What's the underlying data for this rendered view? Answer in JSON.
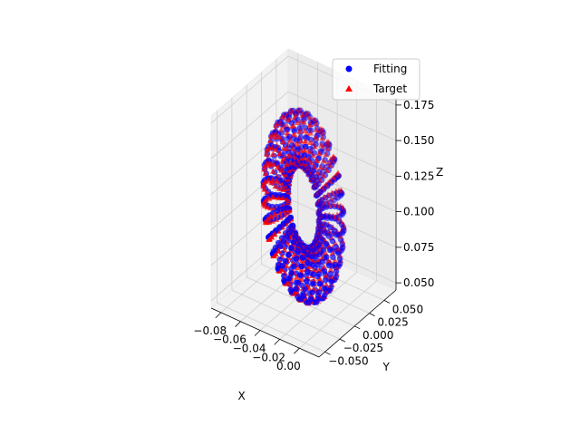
{
  "chart_data": {
    "type": "scatter3d",
    "title": "",
    "xlabel": "X",
    "ylabel": "Y",
    "zlabel": "Z",
    "xlim": [
      -0.09,
      0.02
    ],
    "ylim": [
      -0.06,
      0.07
    ],
    "zlim": [
      0.045,
      0.18
    ],
    "x_ticks": [
      -0.08,
      -0.06,
      -0.04,
      -0.02,
      0.0
    ],
    "x_tick_labels": [
      "−0.08",
      "−0.06",
      "−0.04",
      "−0.02",
      "0.00"
    ],
    "y_ticks": [
      -0.05,
      -0.025,
      0.0,
      0.025,
      0.05
    ],
    "y_tick_labels": [
      "−0.050",
      "−0.025",
      "0.000",
      "0.025",
      "0.050"
    ],
    "z_ticks": [
      0.05,
      0.075,
      0.1,
      0.125,
      0.15,
      0.175
    ],
    "z_tick_labels": [
      "0.050",
      "0.075",
      "0.100",
      "0.125",
      "0.150",
      "0.175"
    ],
    "grid": true,
    "legend_position": "upper-right",
    "shape": {
      "kind": "torus-like surface sampled on a grid",
      "center": [
        -0.035,
        0.005,
        0.11
      ],
      "major_radius": 0.03,
      "minor_radius": 0.012,
      "tilt_degrees": 60
    },
    "series": [
      {
        "name": "Fitting",
        "marker": "circle",
        "color": "#0000ff",
        "phase": 0.0
      },
      {
        "name": "Target",
        "marker": "triangle",
        "color": "#ff0000",
        "phase": 0.12
      }
    ]
  }
}
